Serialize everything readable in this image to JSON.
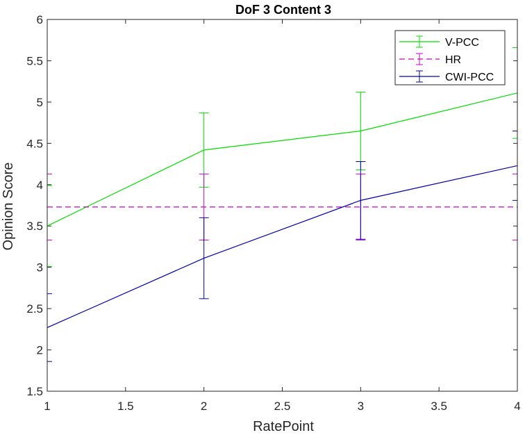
{
  "chart_data": {
    "type": "line",
    "title": "DoF 3 Content 3",
    "xlabel": "RatePoint",
    "ylabel": "Opinion Score",
    "xlim": [
      1,
      4
    ],
    "ylim": [
      1.5,
      6
    ],
    "xticks": [
      "1",
      "1.5",
      "2",
      "2.5",
      "3",
      "3.5",
      "4"
    ],
    "yticks": [
      "1.5",
      "2",
      "2.5",
      "3",
      "3.5",
      "4",
      "4.5",
      "5",
      "5.5",
      "6"
    ],
    "grid": false,
    "legend_position": "top-right",
    "x": [
      1,
      2,
      3,
      4
    ],
    "series": [
      {
        "name": "V-PCC",
        "color": "#00dd00",
        "style": "solid",
        "values": [
          3.5,
          4.42,
          4.65,
          5.11
        ],
        "errors": [
          0.49,
          0.45,
          0.47,
          0.55
        ]
      },
      {
        "name": "HR",
        "color": "#cc00cc",
        "style": "dashed",
        "values": [
          3.73,
          3.73,
          3.73,
          3.73
        ],
        "errors": [
          0.4,
          0.4,
          0.4,
          0.4
        ]
      },
      {
        "name": "CWI-PCC",
        "color": "#0000b0",
        "style": "solid",
        "values": [
          2.27,
          3.11,
          3.81,
          4.23
        ],
        "errors": [
          0.41,
          0.49,
          0.47,
          0.42
        ]
      }
    ]
  }
}
